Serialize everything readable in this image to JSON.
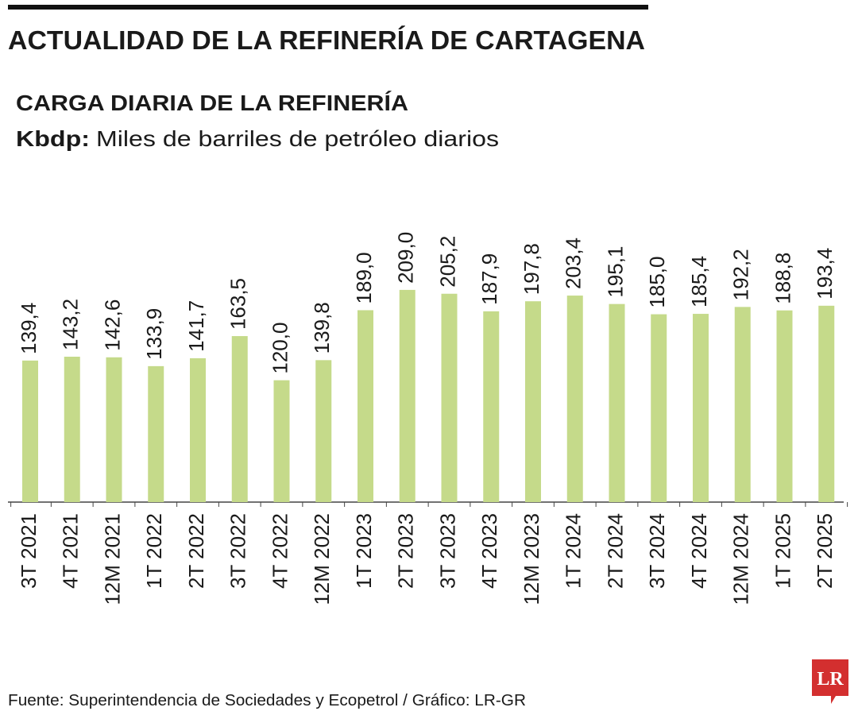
{
  "chart_data": {
    "type": "bar",
    "title": "ACTUALIDAD DE LA REFINERÍA DE CARTAGENA",
    "subtitle": "CARGA DIARIA DE LA REFINERÍA",
    "unit_label": "Kbdp:",
    "unit_description": "Miles de barriles de petróleo diarios",
    "source": "Fuente: Superintendencia de Sociedades y Ecopetrol / Gráfico: LR-GR",
    "logo": "LR",
    "color": "#c5da8a",
    "categories": [
      "3T 2021",
      "4T 2021",
      "12M 2021",
      "1T 2022",
      "2T 2022",
      "3T 2022",
      "4T 2022",
      "12M 2022",
      "1T 2023",
      "2T 2023",
      "3T 2023",
      "4T 2023",
      "12M 2023",
      "1T 2024",
      "2T 2024",
      "3T 2024",
      "4T 2024",
      "12M 2024",
      "1T 2025",
      "2T 2025"
    ],
    "values": [
      139.4,
      143.2,
      142.6,
      133.9,
      141.7,
      163.5,
      120.0,
      139.8,
      189.0,
      209.0,
      205.2,
      187.9,
      197.8,
      203.4,
      195.1,
      185.0,
      185.4,
      192.2,
      188.8,
      193.4
    ],
    "value_labels": [
      "139,4",
      "143,2",
      "142,6",
      "133,9",
      "141,7",
      "163,5",
      "120,0",
      "139,8",
      "189,0",
      "209,0",
      "205,2",
      "187,9",
      "197,8",
      "203,4",
      "195,1",
      "185,0",
      "185,4",
      "192,2",
      "188,8",
      "193,4"
    ]
  }
}
